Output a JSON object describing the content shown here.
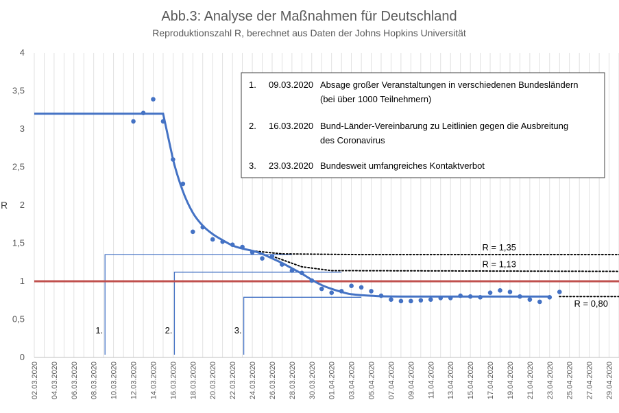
{
  "chart_data": {
    "type": "scatter",
    "title": "Abb.3: Analyse der Maßnahmen für Deutschland",
    "subtitle": "Reproduktionszahl R, berechnet aus Daten der Johns Hopkins Universität",
    "ylabel": "R",
    "xlabel": "",
    "ylim": [
      0,
      4
    ],
    "yticks": [
      0,
      0.5,
      1,
      1.5,
      2,
      2.5,
      3,
      3.5,
      4
    ],
    "ytick_labels": [
      "0",
      "0,5",
      "1",
      "1,5",
      "2",
      "2,5",
      "3",
      "3,5",
      "4"
    ],
    "x_range": [
      "2020-03-02",
      "2020-04-30"
    ],
    "xtick_labels": [
      "02.03.2020",
      "04.03.2020",
      "06.03.2020",
      "08.03.2020",
      "10.03.2020",
      "12.03.2020",
      "14.03.2020",
      "16.03.2020",
      "18.03.2020",
      "20.03.2020",
      "22.03.2020",
      "24.03.2020",
      "26.03.2020",
      "28.03.2020",
      "30.03.2020",
      "01.04.2020",
      "03.04.2020",
      "05.04.2020",
      "07.04.2020",
      "09.04.2020",
      "11.04.2020",
      "13.04.2020",
      "15.04.2020",
      "17.04.2020",
      "19.04.2020",
      "21.04.2020",
      "23.04.2020",
      "25.04.2020",
      "27.04.2020",
      "29.04.2020"
    ],
    "grid": "vertical lines at each day",
    "colors": {
      "points": "#4472c4",
      "fit": "#4472c4",
      "threshold": "#c0504d",
      "axis_text": "#595959",
      "grid": "#d9d9d9"
    },
    "scatter_points": [
      {
        "x": "2020-03-12",
        "y": 3.1
      },
      {
        "x": "2020-03-13",
        "y": 3.21
      },
      {
        "x": "2020-03-14",
        "y": 3.39
      },
      {
        "x": "2020-03-15",
        "y": 3.1
      },
      {
        "x": "2020-03-16",
        "y": 2.6
      },
      {
        "x": "2020-03-17",
        "y": 2.28
      },
      {
        "x": "2020-03-18",
        "y": 1.65
      },
      {
        "x": "2020-03-19",
        "y": 1.71
      },
      {
        "x": "2020-03-20",
        "y": 1.55
      },
      {
        "x": "2020-03-21",
        "y": 1.52
      },
      {
        "x": "2020-03-22",
        "y": 1.48
      },
      {
        "x": "2020-03-23",
        "y": 1.45
      },
      {
        "x": "2020-03-24",
        "y": 1.38
      },
      {
        "x": "2020-03-25",
        "y": 1.3
      },
      {
        "x": "2020-03-26",
        "y": 1.33
      },
      {
        "x": "2020-03-27",
        "y": 1.22
      },
      {
        "x": "2020-03-28",
        "y": 1.14
      },
      {
        "x": "2020-03-29",
        "y": 1.11
      },
      {
        "x": "2020-03-30",
        "y": 1.01
      },
      {
        "x": "2020-03-31",
        "y": 0.9
      },
      {
        "x": "2020-04-01",
        "y": 0.85
      },
      {
        "x": "2020-04-02",
        "y": 0.87
      },
      {
        "x": "2020-04-03",
        "y": 0.94
      },
      {
        "x": "2020-04-04",
        "y": 0.92
      },
      {
        "x": "2020-04-05",
        "y": 0.87
      },
      {
        "x": "2020-04-06",
        "y": 0.81
      },
      {
        "x": "2020-04-07",
        "y": 0.76
      },
      {
        "x": "2020-04-08",
        "y": 0.74
      },
      {
        "x": "2020-04-09",
        "y": 0.74
      },
      {
        "x": "2020-04-10",
        "y": 0.75
      },
      {
        "x": "2020-04-11",
        "y": 0.76
      },
      {
        "x": "2020-04-12",
        "y": 0.78
      },
      {
        "x": "2020-04-13",
        "y": 0.78
      },
      {
        "x": "2020-04-14",
        "y": 0.81
      },
      {
        "x": "2020-04-15",
        "y": 0.8
      },
      {
        "x": "2020-04-16",
        "y": 0.79
      },
      {
        "x": "2020-04-17",
        "y": 0.85
      },
      {
        "x": "2020-04-18",
        "y": 0.88
      },
      {
        "x": "2020-04-19",
        "y": 0.86
      },
      {
        "x": "2020-04-20",
        "y": 0.8
      },
      {
        "x": "2020-04-21",
        "y": 0.76
      },
      {
        "x": "2020-04-22",
        "y": 0.73
      },
      {
        "x": "2020-04-23",
        "y": 0.79
      },
      {
        "x": "2020-04-24",
        "y": 0.86
      }
    ],
    "fit_curve": [
      {
        "x": "2020-03-02",
        "y": 3.2
      },
      {
        "x": "2020-03-15",
        "y": 3.2
      },
      {
        "x": "2020-03-16",
        "y": 2.6
      },
      {
        "x": "2020-03-17",
        "y": 2.18
      },
      {
        "x": "2020-03-18",
        "y": 1.9
      },
      {
        "x": "2020-03-19",
        "y": 1.73
      },
      {
        "x": "2020-03-20",
        "y": 1.62
      },
      {
        "x": "2020-03-21",
        "y": 1.54
      },
      {
        "x": "2020-03-22",
        "y": 1.47
      },
      {
        "x": "2020-03-23",
        "y": 1.43
      },
      {
        "x": "2020-03-24",
        "y": 1.4
      },
      {
        "x": "2020-03-25",
        "y": 1.36
      },
      {
        "x": "2020-03-26",
        "y": 1.3
      },
      {
        "x": "2020-03-27",
        "y": 1.24
      },
      {
        "x": "2020-03-28",
        "y": 1.17
      },
      {
        "x": "2020-03-29",
        "y": 1.1
      },
      {
        "x": "2020-03-30",
        "y": 1.02
      },
      {
        "x": "2020-03-31",
        "y": 0.95
      },
      {
        "x": "2020-04-01",
        "y": 0.9
      },
      {
        "x": "2020-04-02",
        "y": 0.86
      },
      {
        "x": "2020-04-03",
        "y": 0.83
      },
      {
        "x": "2020-04-05",
        "y": 0.81
      },
      {
        "x": "2020-04-08",
        "y": 0.8
      },
      {
        "x": "2020-04-23",
        "y": 0.8
      }
    ],
    "threshold_line": {
      "y": 1
    },
    "projections": [
      {
        "label": "R = 1,35",
        "points": [
          {
            "x": "2020-03-24",
            "y": 1.4
          },
          {
            "x": "2020-03-27",
            "y": 1.36
          },
          {
            "x": "2020-04-04",
            "y": 1.35
          },
          {
            "x": "2020-04-30",
            "y": 1.35
          }
        ]
      },
      {
        "label": "R = 1,13",
        "points": [
          {
            "x": "2020-03-26",
            "y": 1.33
          },
          {
            "x": "2020-03-29",
            "y": 1.19
          },
          {
            "x": "2020-04-01",
            "y": 1.14
          },
          {
            "x": "2020-04-30",
            "y": 1.13
          }
        ]
      },
      {
        "label": "R = 0,80",
        "points": [
          {
            "x": "2020-04-24",
            "y": 0.8
          },
          {
            "x": "2020-04-30",
            "y": 0.8
          }
        ]
      }
    ],
    "measure_markers": [
      {
        "label": "1.",
        "date": "2020-03-09",
        "line_y": 1.35,
        "line_end": "2020-03-28"
      },
      {
        "label": "2.",
        "date": "2020-03-16",
        "line_y": 1.12,
        "line_end": "2020-04-02"
      },
      {
        "label": "3.",
        "date": "2020-03-23",
        "line_y": 0.79,
        "line_end": "2020-04-04"
      }
    ],
    "annotation_box": [
      {
        "num": "1.",
        "date": "09.03.2020",
        "lines": [
          "Absage großer Veranstaltungen in verschiedenen Bundesländern",
          "(bei über 1000 Teilnehmern)"
        ]
      },
      {
        "num": "2.",
        "date": "16.03.2020",
        "lines": [
          "Bund-Länder-Vereinbarung zu Leitlinien gegen die Ausbreitung",
          "des Coronavirus"
        ]
      },
      {
        "num": "3.",
        "date": "23.03.2020",
        "lines": [
          "Bundesweit umfangreiches Kontaktverbot"
        ]
      }
    ]
  }
}
